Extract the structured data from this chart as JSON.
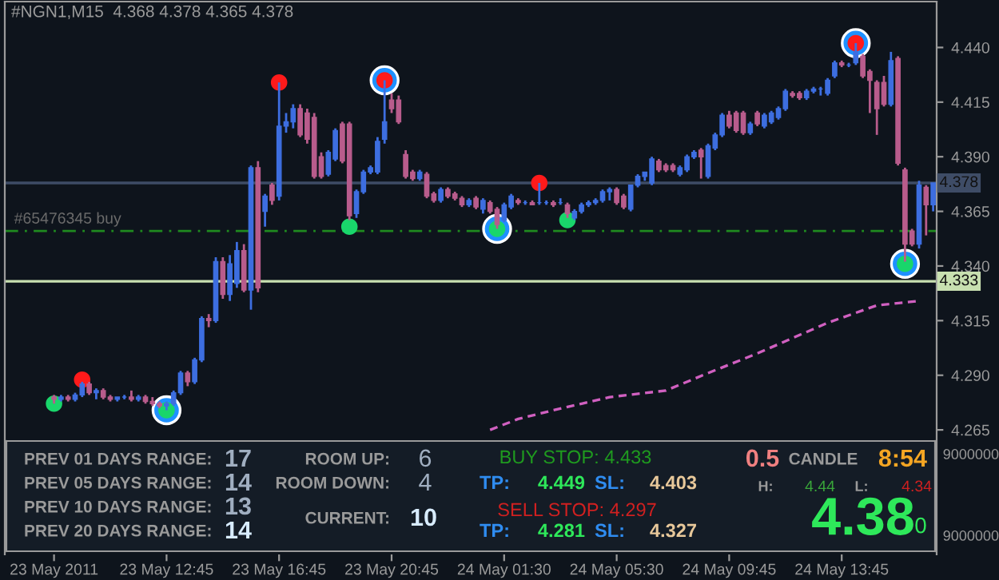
{
  "chart_data": [
    {
      "type": "candlestick",
      "title": "#NGN1,M15  4.368 4.378 4.365 4.378",
      "categories": [
        "23 May 2011",
        null,
        null,
        null,
        null,
        null,
        null,
        null,
        null,
        null,
        null,
        null,
        null,
        null,
        null,
        null,
        "23 May 12:45",
        null,
        null,
        null,
        null,
        null,
        null,
        null,
        null,
        null,
        null,
        null,
        null,
        null,
        null,
        null,
        "23 May 16:45",
        null,
        null,
        null,
        null,
        null,
        null,
        null,
        null,
        null,
        null,
        null,
        null,
        null,
        null,
        null,
        "23 May 20:45",
        null,
        null,
        null,
        null,
        null,
        null,
        null,
        null,
        null,
        null,
        null,
        null,
        null,
        null,
        null,
        "24 May 01:30",
        null,
        null,
        null,
        null,
        null,
        null,
        null,
        null,
        null,
        null,
        null,
        null,
        null,
        null,
        null,
        "24 May 05:30",
        null,
        null,
        null,
        null,
        null,
        null,
        null,
        null,
        null,
        null,
        null,
        null,
        null,
        null,
        null,
        "24 May 09:45",
        null,
        null,
        null,
        null,
        null,
        null,
        null,
        null,
        null,
        null,
        null,
        null,
        null,
        null,
        null,
        "24 May 13:45",
        null,
        null,
        null,
        null,
        null,
        null,
        null,
        null,
        null,
        null,
        null,
        null,
        null
      ],
      "ohlc": [
        [
          4.28,
          4.281,
          4.277,
          4.279
        ],
        [
          4.279,
          4.281,
          4.278,
          4.28
        ],
        [
          4.28,
          4.281,
          4.278,
          4.279
        ],
        [
          4.279,
          4.282,
          4.278,
          4.281
        ],
        [
          4.281,
          4.287,
          4.28,
          4.286
        ],
        [
          4.286,
          4.287,
          4.281,
          4.282
        ],
        [
          4.282,
          4.284,
          4.279,
          4.283
        ],
        [
          4.283,
          4.284,
          4.279,
          4.28
        ],
        [
          4.28,
          4.281,
          4.278,
          4.279
        ],
        [
          4.279,
          4.28,
          4.278,
          4.28
        ],
        [
          4.28,
          4.281,
          4.279,
          4.28
        ],
        [
          4.28,
          4.283,
          4.278,
          4.279
        ],
        [
          4.279,
          4.281,
          4.278,
          4.28
        ],
        [
          4.28,
          4.281,
          4.277,
          4.278
        ],
        [
          4.278,
          4.28,
          4.276,
          4.277
        ],
        [
          4.277,
          4.278,
          4.275,
          4.276
        ],
        [
          4.276,
          4.278,
          4.274,
          4.277
        ],
        [
          4.277,
          4.283,
          4.276,
          4.282
        ],
        [
          4.282,
          4.292,
          4.281,
          4.291
        ],
        [
          4.291,
          4.292,
          4.285,
          4.287
        ],
        [
          4.287,
          4.298,
          4.286,
          4.297
        ],
        [
          4.297,
          4.317,
          4.296,
          4.316
        ],
        [
          4.316,
          4.318,
          4.312,
          4.315
        ],
        [
          4.315,
          4.344,
          4.314,
          4.342
        ],
        [
          4.342,
          4.344,
          4.325,
          4.327
        ],
        [
          4.327,
          4.345,
          4.324,
          4.341
        ],
        [
          4.332,
          4.351,
          4.33,
          4.347
        ],
        [
          4.347,
          4.35,
          4.328,
          4.329
        ],
        [
          4.329,
          4.386,
          4.32,
          4.385
        ],
        [
          4.385,
          4.388,
          4.328,
          4.33
        ],
        [
          4.365,
          4.373,
          4.358,
          4.372
        ],
        [
          4.377,
          4.378,
          4.368,
          4.37
        ],
        [
          4.372,
          4.424,
          4.37,
          4.404
        ],
        [
          4.404,
          4.41,
          4.401,
          4.406
        ],
        [
          4.406,
          4.414,
          4.403,
          4.412
        ],
        [
          4.412,
          4.414,
          4.399,
          4.4
        ],
        [
          4.41,
          4.412,
          4.396,
          4.398
        ],
        [
          4.408,
          4.41,
          4.38,
          4.381
        ],
        [
          4.39,
          4.392,
          4.38,
          4.381
        ],
        [
          4.382,
          4.393,
          4.381,
          4.392
        ],
        [
          4.389,
          4.403,
          4.388,
          4.402
        ],
        [
          4.405,
          4.406,
          4.387,
          4.388
        ],
        [
          4.405,
          4.406,
          4.361,
          4.363
        ],
        [
          4.364,
          4.375,
          4.362,
          4.374
        ],
        [
          4.374,
          4.384,
          4.373,
          4.383
        ],
        [
          4.383,
          4.386,
          4.382,
          4.385
        ],
        [
          4.383,
          4.399,
          4.382,
          4.397
        ],
        [
          4.398,
          4.425,
          4.396,
          4.406
        ],
        [
          4.416,
          4.419,
          4.41,
          4.412
        ],
        [
          4.416,
          4.418,
          4.405,
          4.406
        ],
        [
          4.391,
          4.393,
          4.38,
          4.381
        ],
        [
          4.383,
          4.384,
          4.379,
          4.38
        ],
        [
          4.38,
          4.384,
          4.379,
          4.383
        ],
        [
          4.382,
          4.383,
          4.371,
          4.372
        ],
        [
          4.373,
          4.374,
          4.369,
          4.37
        ],
        [
          4.37,
          4.376,
          4.369,
          4.375
        ],
        [
          4.375,
          4.376,
          4.371,
          4.372
        ],
        [
          4.373,
          4.374,
          4.37,
          4.371
        ],
        [
          4.371,
          4.372,
          4.367,
          4.368
        ],
        [
          4.368,
          4.371,
          4.367,
          4.37
        ],
        [
          4.371,
          4.372,
          4.366,
          4.367
        ],
        [
          4.366,
          4.371,
          4.364,
          4.37
        ],
        [
          4.369,
          4.37,
          4.364,
          4.365
        ],
        [
          4.366,
          4.367,
          4.357,
          4.359
        ],
        [
          4.361,
          4.369,
          4.36,
          4.368
        ],
        [
          4.367,
          4.373,
          4.366,
          4.372
        ],
        [
          4.37,
          4.371,
          4.368,
          4.369
        ],
        [
          4.369,
          4.37,
          4.368,
          4.369
        ],
        [
          4.369,
          4.37,
          4.368,
          4.368
        ],
        [
          4.369,
          4.378,
          4.368,
          4.369
        ],
        [
          4.369,
          4.37,
          4.368,
          4.369
        ],
        [
          4.369,
          4.37,
          4.367,
          4.368
        ],
        [
          4.369,
          4.371,
          4.368,
          4.369
        ],
        [
          4.368,
          4.369,
          4.362,
          4.364
        ],
        [
          4.362,
          4.366,
          4.361,
          4.365
        ],
        [
          4.365,
          4.369,
          4.364,
          4.368
        ],
        [
          4.368,
          4.37,
          4.367,
          4.369
        ],
        [
          4.369,
          4.371,
          4.368,
          4.37
        ],
        [
          4.37,
          4.375,
          4.369,
          4.374
        ],
        [
          4.374,
          4.376,
          4.37,
          4.375
        ],
        [
          4.375,
          4.376,
          4.368,
          4.369
        ],
        [
          4.372,
          4.373,
          4.366,
          4.367
        ],
        [
          4.366,
          4.377,
          4.365,
          4.377
        ],
        [
          4.377,
          4.382,
          4.376,
          4.381
        ],
        [
          4.381,
          4.383,
          4.379,
          4.383
        ],
        [
          4.378,
          4.39,
          4.377,
          4.389
        ],
        [
          4.388,
          4.389,
          4.383,
          4.384
        ],
        [
          4.386,
          4.387,
          4.383,
          4.384
        ],
        [
          4.386,
          4.387,
          4.383,
          4.384
        ],
        [
          4.382,
          4.386,
          4.381,
          4.385
        ],
        [
          4.384,
          4.391,
          4.383,
          4.39
        ],
        [
          4.39,
          4.393,
          4.389,
          4.392
        ],
        [
          4.393,
          4.394,
          4.38,
          4.39
        ],
        [
          4.381,
          4.396,
          4.38,
          4.395
        ],
        [
          4.394,
          4.401,
          4.393,
          4.4
        ],
        [
          4.4,
          4.41,
          4.399,
          4.409
        ],
        [
          4.409,
          4.411,
          4.403,
          4.404
        ],
        [
          4.41,
          4.411,
          4.401,
          4.402
        ],
        [
          4.41,
          4.411,
          4.4,
          4.401
        ],
        [
          4.401,
          4.406,
          4.4,
          4.405
        ],
        [
          4.41,
          4.411,
          4.404,
          4.405
        ],
        [
          4.404,
          4.41,
          4.403,
          4.409
        ],
        [
          4.406,
          4.411,
          4.405,
          4.41
        ],
        [
          4.408,
          4.413,
          4.407,
          4.412
        ],
        [
          4.412,
          4.421,
          4.411,
          4.42
        ],
        [
          4.419,
          4.42,
          4.417,
          4.418
        ],
        [
          4.419,
          4.42,
          4.416,
          4.417
        ],
        [
          4.417,
          4.421,
          4.416,
          4.42
        ],
        [
          4.42,
          4.422,
          4.419,
          4.421
        ],
        [
          4.421,
          4.422,
          4.418,
          4.421
        ],
        [
          4.419,
          4.426,
          4.418,
          4.425
        ],
        [
          4.427,
          4.434,
          4.426,
          4.433
        ],
        [
          4.433,
          4.434,
          4.431,
          4.432
        ],
        [
          4.432,
          4.433,
          4.431,
          4.432
        ],
        [
          4.433,
          4.442,
          4.432,
          4.438
        ],
        [
          4.436,
          4.437,
          4.426,
          4.427
        ],
        [
          4.429,
          4.43,
          4.41,
          4.425
        ],
        [
          4.424,
          4.425,
          4.4,
          4.412
        ],
        [
          4.424,
          4.427,
          4.413,
          4.414
        ],
        [
          4.414,
          4.438,
          4.413,
          4.434
        ],
        [
          4.435,
          4.436,
          4.386,
          4.387
        ],
        [
          4.384,
          4.385,
          4.342,
          4.35
        ],
        [
          4.356,
          4.357,
          4.349,
          4.35
        ],
        [
          4.35,
          4.379,
          4.348,
          4.377
        ],
        [
          4.376,
          4.377,
          4.354,
          4.368
        ],
        [
          4.368,
          4.378,
          4.365,
          4.378
        ]
      ],
      "marker": "circle",
      "series": [
        {
          "type": "scatter",
          "color": "#1e90ff",
          "values": [
            null,
            null,
            null,
            null,
            null,
            null,
            null,
            null,
            null,
            null,
            null,
            null,
            null,
            null,
            null,
            null,
            4.274,
            null,
            null,
            null,
            null,
            null,
            null,
            null,
            null,
            null,
            null,
            null,
            null,
            null,
            null,
            null,
            null,
            null,
            null,
            null,
            null,
            null,
            null,
            null,
            null,
            null,
            null,
            null,
            null,
            null,
            null,
            4.425,
            null,
            null,
            null,
            null,
            null,
            null,
            null,
            null,
            null,
            null,
            null,
            null,
            null,
            null,
            null,
            4.357,
            null,
            null,
            null,
            null,
            null,
            null,
            null,
            null,
            null,
            null,
            null,
            null,
            null,
            null,
            null,
            null,
            null,
            null,
            null,
            null,
            null,
            null,
            null,
            null,
            null,
            null,
            null,
            null,
            null,
            null,
            null,
            null,
            null,
            null,
            null,
            null,
            null,
            null,
            null,
            null,
            null,
            null,
            null,
            null,
            null,
            null,
            null,
            null,
            null,
            null,
            4.442,
            null,
            null,
            null,
            null,
            null,
            null,
            4.341,
            null,
            null,
            null,
            null
          ]
        },
        {
          "type": "scatter",
          "color": "#ff1a1a",
          "values": [
            null,
            null,
            null,
            null,
            4.288,
            null,
            null,
            null,
            null,
            null,
            null,
            null,
            null,
            null,
            null,
            null,
            null,
            null,
            null,
            null,
            null,
            null,
            null,
            null,
            null,
            null,
            null,
            null,
            null,
            null,
            null,
            null,
            4.424,
            null,
            null,
            null,
            null,
            null,
            null,
            null,
            null,
            null,
            null,
            null,
            null,
            null,
            null,
            4.425,
            null,
            null,
            null,
            null,
            null,
            null,
            null,
            null,
            null,
            null,
            null,
            null,
            null,
            null,
            null,
            null,
            null,
            null,
            null,
            null,
            null,
            4.378,
            null,
            null,
            null,
            null,
            null,
            null,
            null,
            null,
            null,
            null,
            null,
            null,
            null,
            null,
            null,
            null,
            null,
            null,
            null,
            null,
            null,
            null,
            null,
            null,
            null,
            null,
            null,
            null,
            null,
            null,
            null,
            null,
            null,
            null,
            null,
            null,
            null,
            null,
            null,
            null,
            null,
            null,
            null,
            null,
            4.442,
            null,
            null,
            null,
            null,
            null,
            null,
            null,
            null,
            null,
            null,
            null
          ]
        },
        {
          "type": "scatter",
          "color": "#19d66b",
          "values": [
            4.277,
            null,
            null,
            null,
            null,
            null,
            null,
            null,
            null,
            null,
            null,
            null,
            null,
            null,
            null,
            null,
            4.274,
            null,
            null,
            null,
            null,
            null,
            null,
            null,
            null,
            null,
            null,
            null,
            null,
            null,
            null,
            null,
            null,
            null,
            null,
            null,
            null,
            null,
            null,
            null,
            null,
            null,
            4.358,
            null,
            null,
            null,
            null,
            null,
            null,
            null,
            null,
            null,
            null,
            null,
            null,
            null,
            null,
            null,
            null,
            null,
            null,
            null,
            null,
            4.357,
            null,
            null,
            null,
            null,
            null,
            null,
            null,
            null,
            null,
            4.361,
            null,
            null,
            null,
            null,
            null,
            null,
            null,
            null,
            null,
            null,
            null,
            null,
            null,
            null,
            null,
            null,
            null,
            null,
            null,
            null,
            null,
            null,
            null,
            null,
            null,
            null,
            null,
            null,
            null,
            null,
            null,
            null,
            null,
            null,
            null,
            null,
            null,
            null,
            null,
            null,
            null,
            null,
            null,
            null,
            null,
            null,
            null,
            4.341,
            null,
            null,
            null,
            null
          ]
        },
        {
          "type": "line",
          "color": "#d060c0",
          "line_style": "dashed",
          "marker": "none",
          "values": [
            null,
            null,
            null,
            null,
            null,
            null,
            null,
            null,
            null,
            null,
            null,
            null,
            null,
            null,
            null,
            null,
            null,
            null,
            null,
            null,
            null,
            null,
            null,
            null,
            null,
            null,
            null,
            null,
            null,
            null,
            null,
            null,
            null,
            null,
            null,
            null,
            null,
            null,
            null,
            null,
            null,
            null,
            null,
            null,
            null,
            null,
            null,
            null,
            null,
            null,
            null,
            null,
            null,
            null,
            null,
            null,
            null,
            null,
            null,
            null,
            null,
            null,
            4.265,
            null,
            null,
            null,
            4.27,
            null,
            null,
            null,
            null,
            4.274,
            null,
            null,
            null,
            4.277,
            null,
            null,
            null,
            4.28,
            null,
            null,
            null,
            null,
            null,
            null,
            null,
            4.283,
            null,
            null,
            null,
            null,
            null,
            4.291,
            null,
            null,
            null,
            null,
            null,
            null,
            4.3,
            null,
            null,
            null,
            null,
            4.307,
            null,
            null,
            null,
            null,
            4.314,
            null,
            null,
            null,
            null,
            null,
            null,
            4.322,
            null,
            null,
            null,
            null,
            null,
            4.324,
            null,
            null
          ]
        }
      ],
      "ylim": [
        4.208,
        4.461
      ],
      "yticks": [
        {
          "value": 4.44,
          "label": "4.440"
        },
        {
          "value": 4.415,
          "label": "4.415"
        },
        {
          "value": 4.39,
          "label": "4.390"
        },
        {
          "value": 4.365,
          "label": "4.365"
        },
        {
          "value": 4.34,
          "label": "4.340"
        },
        {
          "value": 4.315,
          "label": "4.315"
        },
        {
          "value": 4.29,
          "label": "4.290"
        },
        {
          "value": 4.265,
          "label": "4.265"
        }
      ],
      "ref_lines": [
        {
          "axis": "y",
          "value": 4.378,
          "label": "4.378",
          "color": "#3e4c66",
          "line_style": "solid"
        },
        {
          "axis": "y",
          "value": 4.333,
          "label": "4.333",
          "color": "#c8e0b0",
          "line_style": "solid"
        },
        {
          "axis": "y",
          "value": 4.356,
          "label": "#65476345 buy",
          "color": "#1f8a1f",
          "line_style": "dashed"
        }
      ]
    },
    {
      "type": "other",
      "annotations": [
        "PREV 01 DAYS RANGE:",
        "17",
        "PREV 05 DAYS RANGE:",
        "14",
        "PREV 10 DAYS RANGE:",
        "13",
        "PREV 20 DAYS RANGE:",
        "14",
        "ROOM UP:",
        "6",
        "ROOM DOWN:",
        "4",
        "CURRENT:",
        "10",
        "BUY STOP: 4.433",
        "TP:",
        "4.449",
        "SL:",
        "4.403",
        "SELL STOP: 4.297",
        "TP:",
        "4.281",
        "SL:",
        "4.327",
        "0.5",
        "CANDLE",
        "8:54",
        "H:",
        "4.44",
        "L:",
        "4.34",
        "4.38",
        "0",
        "9000000",
        "9000000"
      ]
    }
  ]
}
